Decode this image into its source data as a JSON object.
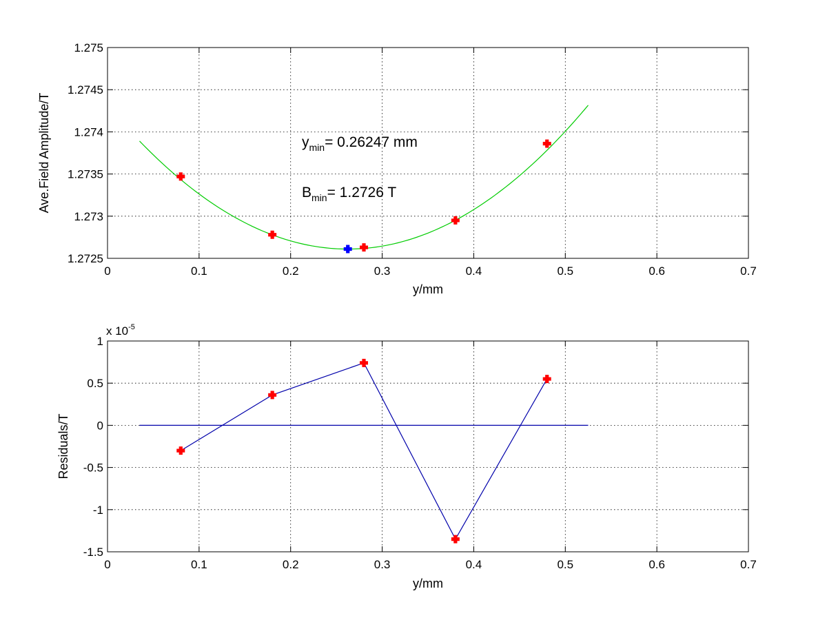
{
  "chart_data": [
    {
      "type": "line",
      "title": "",
      "xlabel": "y/mm",
      "ylabel": "Ave.Field Amplitude/T",
      "xlim": [
        0,
        0.7
      ],
      "ylim": [
        1.2725,
        1.275
      ],
      "grid": true,
      "xticks": [
        "0",
        "0.1",
        "0.2",
        "0.3",
        "0.4",
        "0.5",
        "0.6",
        "0.7"
      ],
      "yticks": [
        "1.2725",
        "1.273",
        "1.2735",
        "1.274",
        "1.2745",
        "1.275"
      ],
      "measured": {
        "x": [
          0.08,
          0.18,
          0.28,
          0.38,
          0.48
        ],
        "y": [
          1.27347,
          1.27278,
          1.27263,
          1.27295,
          1.27386
        ],
        "color": "#ff0000",
        "marker": "plus-bold"
      },
      "fit": {
        "x_range": [
          0.035,
          0.525
        ],
        "vertex_x": 0.26247,
        "vertex_y": 1.27261,
        "coef_a": 0.02475,
        "color": "#00cc00"
      },
      "minimum_point": {
        "x": 0.26247,
        "y": 1.27261,
        "color": "#0000ff"
      },
      "annotations": [
        {
          "main": "y",
          "sub": "min",
          "text": "= 0.26247 mm"
        },
        {
          "main": "B",
          "sub": "min",
          "text": "= 1.2726 T"
        }
      ]
    },
    {
      "type": "line",
      "title": "",
      "xlabel": "y/mm",
      "ylabel": "Residuals/T",
      "xlim": [
        0,
        0.7
      ],
      "ylim": [
        -1.5,
        1
      ],
      "y_exponent_base": "x 10",
      "y_exponent_power": "-5",
      "grid": true,
      "xticks": [
        "0",
        "0.1",
        "0.2",
        "0.3",
        "0.4",
        "0.5",
        "0.6",
        "0.7"
      ],
      "yticks": [
        "-1.5",
        "-1",
        "-0.5",
        "0",
        "0.5",
        "1"
      ],
      "residuals": {
        "x": [
          0.08,
          0.18,
          0.28,
          0.38,
          0.48
        ],
        "y": [
          -0.3,
          0.36,
          0.74,
          -1.35,
          0.55
        ],
        "line_color": "#0000aa",
        "marker_color": "#ff0000"
      },
      "zero_line": {
        "x_range": [
          0.035,
          0.525
        ],
        "y": 0,
        "color": "#0000aa"
      }
    }
  ]
}
